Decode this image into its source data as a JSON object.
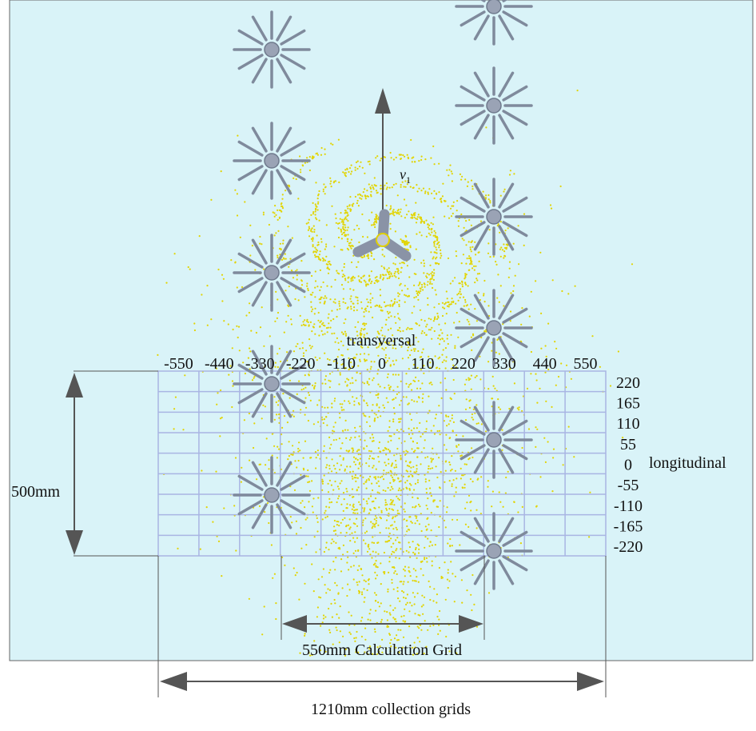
{
  "labels": {
    "velocity": "v",
    "velocity_sub": "1",
    "transversal": "transversal",
    "longitudinal": "longitudinal",
    "height_dim": "500mm",
    "calc_grid": "550mm Calculation Grid",
    "collection_grid": "1210mm collection grids"
  },
  "transversal_ticks": [
    "-550",
    "-440",
    "-330",
    "-220",
    "-110",
    "0",
    "110",
    "220",
    "330",
    "440",
    "550"
  ],
  "longitudinal_ticks": [
    "220",
    "165",
    "110",
    "55",
    "0",
    "-55",
    "-110",
    "-165",
    "-220"
  ],
  "colors": {
    "background": "#d9f3f8",
    "grid_line": "#a9b5e3",
    "nozzle": "#7f8a9c",
    "spray_dots": "#e2d400",
    "dimension": "#555555"
  },
  "icons": {
    "nozzle": "star-nozzle-icon",
    "sprinkler": "three-arm-sprinkler-icon"
  }
}
